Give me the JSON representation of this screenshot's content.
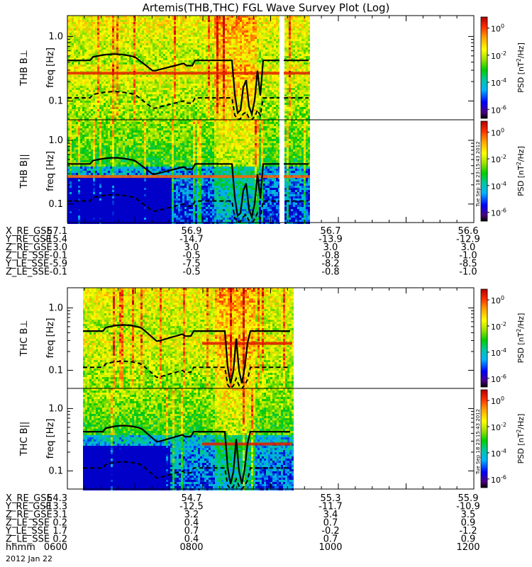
{
  "chart_data": {
    "type": "heatmap",
    "title": "Artemis(THB,THC) FGL Wave Survey Plot (Log)",
    "date_label": "2012 Jan 22",
    "timestamp_stamp": "Tue Sep 18 23:15:43 2012",
    "colorbar": {
      "label": "PSD [nT²/Hz]",
      "label_base": "PSD [nT",
      "label_sup": "2",
      "label_tail": "/Hz]",
      "ticks": [
        {
          "base": "10",
          "exp": "0"
        },
        {
          "base": "10",
          "exp": "-2"
        },
        {
          "base": "10",
          "exp": "-4"
        },
        {
          "base": "10",
          "exp": "-6"
        }
      ],
      "colors": [
        "#000000",
        "#4b0082",
        "#0000ff",
        "#00b4ff",
        "#00c8a0",
        "#00d000",
        "#a0e000",
        "#ffff00",
        "#ffa000",
        "#ff3000",
        "#b40000"
      ]
    },
    "y_axis": {
      "label": "freq [Hz]",
      "scale": "log",
      "ticks": [
        "1.0",
        "0.1"
      ]
    },
    "panels": [
      {
        "label": "THB B⊥"
      },
      {
        "label": "THB B||"
      },
      {
        "label": "THC B⊥"
      },
      {
        "label": "THC B||"
      }
    ],
    "ephemeris_top": {
      "rows": [
        {
          "name": "X_RE_GSE",
          "values": [
            "57.1",
            "56.9",
            "56.7",
            "56.6"
          ]
        },
        {
          "name": "Y_RE_GSE",
          "values": [
            "-15.4",
            "-14.7",
            "-13.9",
            "-12.9"
          ]
        },
        {
          "name": "Z_RE_GSE",
          "values": [
            "3.0",
            "3.0",
            "3.0",
            "3.0"
          ]
        },
        {
          "name": "Z_LE_SSE",
          "values": [
            "-0.1",
            "-0.5",
            "-0.8",
            "-1.0"
          ]
        },
        {
          "name": "Y_LE_SSE",
          "values": [
            "-5.9",
            "-7.5",
            "-8.2",
            "-8.5"
          ]
        },
        {
          "name": "Z_LE_SSE",
          "values": [
            "-0.1",
            "-0.5",
            "-0.8",
            "-1.0"
          ]
        }
      ]
    },
    "ephemeris_bottom": {
      "rows": [
        {
          "name": "X_RE_GSE",
          "values": [
            "54.3",
            "54.7",
            "55.3",
            "55.9"
          ]
        },
        {
          "name": "Y_RE_GSE",
          "values": [
            "-13.3",
            "-12.5",
            "-11.7",
            "-10.9"
          ]
        },
        {
          "name": "Z_RE_GSE",
          "values": [
            "3.1",
            "3.2",
            "3.4",
            "3.5"
          ]
        },
        {
          "name": "Z_LE_SSE",
          "values": [
            "0.2",
            "0.4",
            "0.7",
            "0.9"
          ]
        },
        {
          "name": "Y_LE_SSE",
          "values": [
            "1.7",
            "0.7",
            "-0.2",
            "-1.2"
          ]
        },
        {
          "name": "Z_LE_SSE",
          "values": [
            "0.2",
            "0.4",
            "0.7",
            "0.9"
          ]
        },
        {
          "name": "hhmm",
          "values": [
            "0600",
            "0800",
            "1000",
            "1200"
          ]
        }
      ]
    },
    "time_axis": {
      "x_range_hhmm": [
        "0600",
        "1200"
      ],
      "thb_data_end_hhmm": "0920",
      "thc_data_end_hhmm": "0920",
      "thc_data_start_hhmm": "0605"
    }
  }
}
